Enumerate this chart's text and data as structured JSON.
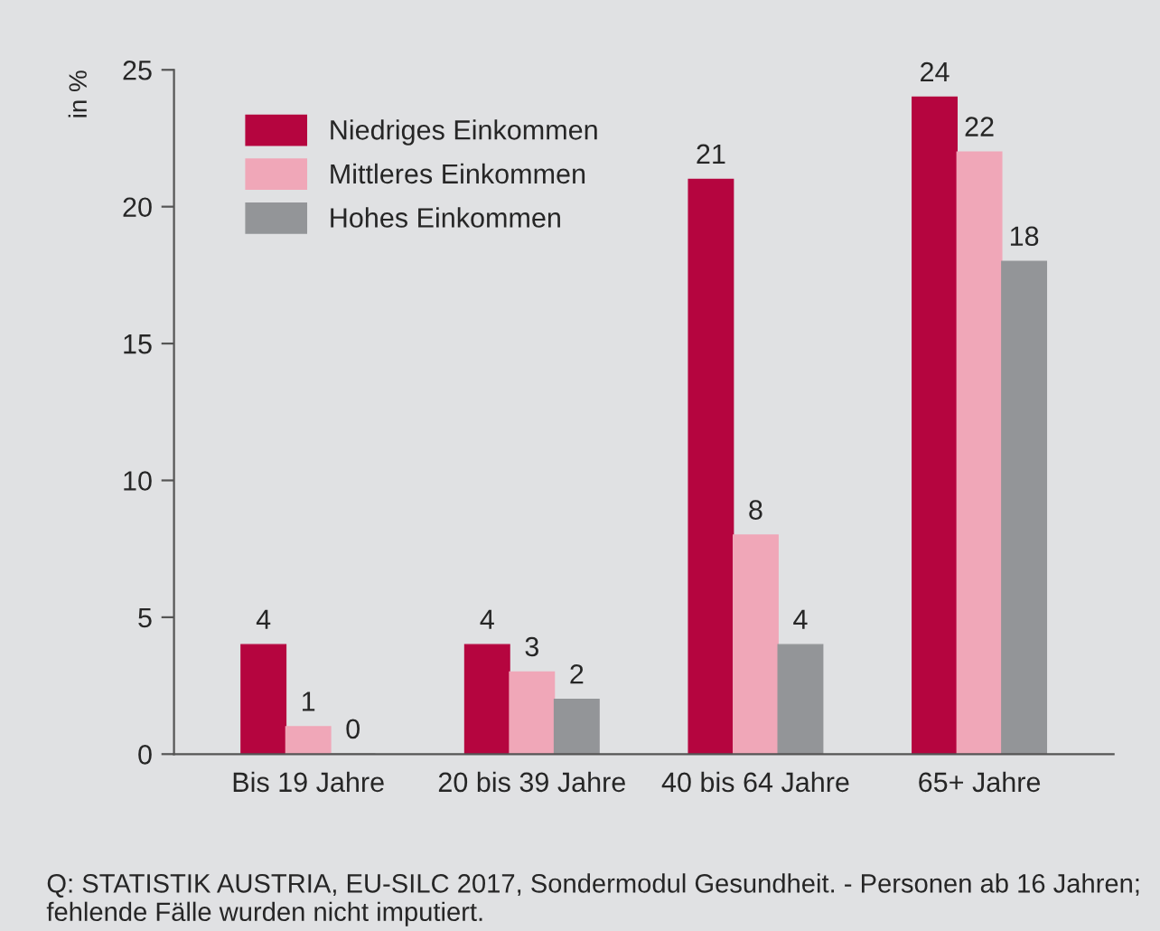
{
  "chart_data": {
    "type": "bar",
    "ylabel": "in %",
    "categories": [
      "Bis 19 Jahre",
      "20 bis 39 Jahre",
      "40 bis 64 Jahre",
      "65+ Jahre"
    ],
    "series": [
      {
        "name": "Niedriges Einkommen",
        "color": "#b5053f",
        "values": [
          4,
          4,
          21,
          24
        ]
      },
      {
        "name": "Mittleres Einkommen",
        "color": "#f0a7b8",
        "values": [
          1,
          3,
          8,
          22
        ]
      },
      {
        "name": "Hohes Einkommen",
        "color": "#939598",
        "values": [
          0,
          2,
          4,
          18
        ]
      }
    ],
    "ylim": [
      0,
      25
    ],
    "yticks": [
      0,
      5,
      10,
      15,
      20,
      25
    ],
    "data_labels": true,
    "grid": false,
    "legend": "top left",
    "annotations": [
      "Q: STATISTIK AUSTRIA, EU-SILC 2017, Sondermodul Gesundheit. - Personen ab 16 Jahren; fehlende Fälle wurden nicht imputiert."
    ]
  }
}
